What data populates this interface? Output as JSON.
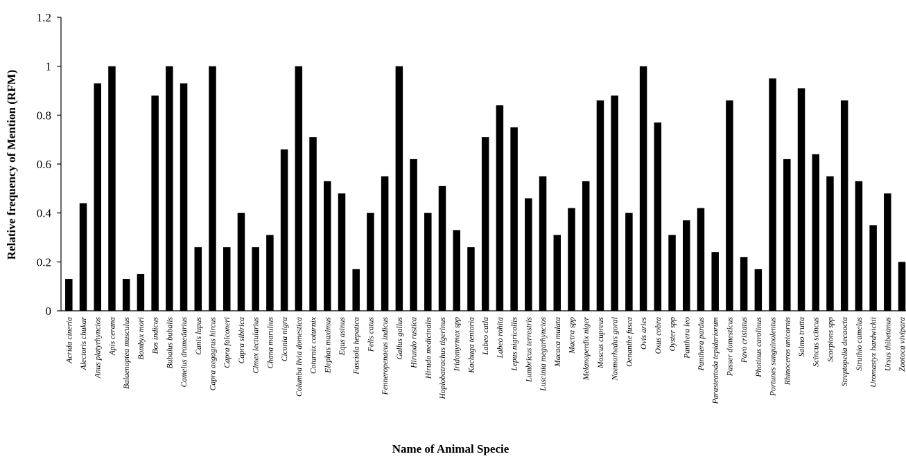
{
  "chart_data": {
    "type": "bar",
    "xlabel": "Name of Animal Specie",
    "ylabel": "Relative frequency of Mention (RFM)",
    "ylim": [
      0,
      1.2
    ],
    "yticks": [
      "0",
      "0.2",
      "0.4",
      "0.6",
      "0.8",
      "1",
      "1.2"
    ],
    "grid": false,
    "bar_color": "#000000",
    "categories": [
      "Acrida cineria",
      "Alectoris chukar",
      "Anus platyrhyncios",
      "Apis cerana",
      "Balaenoptea musculus",
      "Bombyx mori",
      "Bos indicus",
      "Bubalus bubalis",
      "Camelus dromedarius",
      "Canis lupus",
      "Capra aegagrus hircus",
      "Capra falconeri",
      "Capra sibirica",
      "Cimex lectularius",
      "Chana marulius",
      "Ciconia nigra",
      "Columba livia domestica",
      "Coturnix coturnix",
      "Elephas maximus",
      "Equs asinus",
      "Fasciola hepatica",
      "Felis catus",
      "Fenneropenaeus indicus",
      "Gallus gallus",
      "Hirundo rustica",
      "Hirudo medicinalis",
      "Hoplobatrachus tigerinus",
      "Iridomyrmex spp",
      "Kachuga tentoria",
      "Labeo catla",
      "Labeo rohita",
      "Lepus nigricollis",
      "Lumbricus terrestris",
      "Luscinia megarhyncios",
      "Macaca mulata",
      "Mactra spp",
      "Melanoperdix niger",
      "Moscus cupreus",
      "Naemorhedus goral",
      "Oenanthe fusca",
      "Ovis aries",
      "Oxus cobra",
      "Oyster spp",
      "Panthera leo",
      "Panthera pardus",
      "Parasteatoda tepidariorum",
      "Passer domesticus",
      "Pavo cristatus",
      "Photinus carolinus",
      "Portunes sanguinolentus",
      "Rhinoceros unicornis",
      "Salmo trutta",
      "Scincus scincus",
      "Scorpions spp",
      "Streptopelia decaocta",
      "Struthio camelus",
      "Uromastyx hardwickii",
      "Ursus thibetanus",
      "Zootoca vivipara"
    ],
    "values": [
      0.13,
      0.44,
      0.93,
      1.0,
      0.13,
      0.15,
      0.88,
      1.0,
      0.93,
      0.26,
      1.0,
      0.26,
      0.4,
      0.26,
      0.31,
      0.66,
      1.0,
      0.71,
      0.53,
      0.48,
      0.17,
      0.4,
      0.55,
      1.0,
      0.62,
      0.4,
      0.51,
      0.33,
      0.26,
      0.71,
      0.84,
      0.75,
      0.46,
      0.55,
      0.31,
      0.42,
      0.53,
      0.86,
      0.88,
      0.4,
      1.0,
      0.77,
      0.31,
      0.37,
      0.42,
      0.24,
      0.86,
      0.22,
      0.17,
      0.95,
      0.62,
      0.91,
      0.64,
      0.55,
      0.86,
      0.53,
      0.35,
      0.48,
      0.2
    ]
  }
}
